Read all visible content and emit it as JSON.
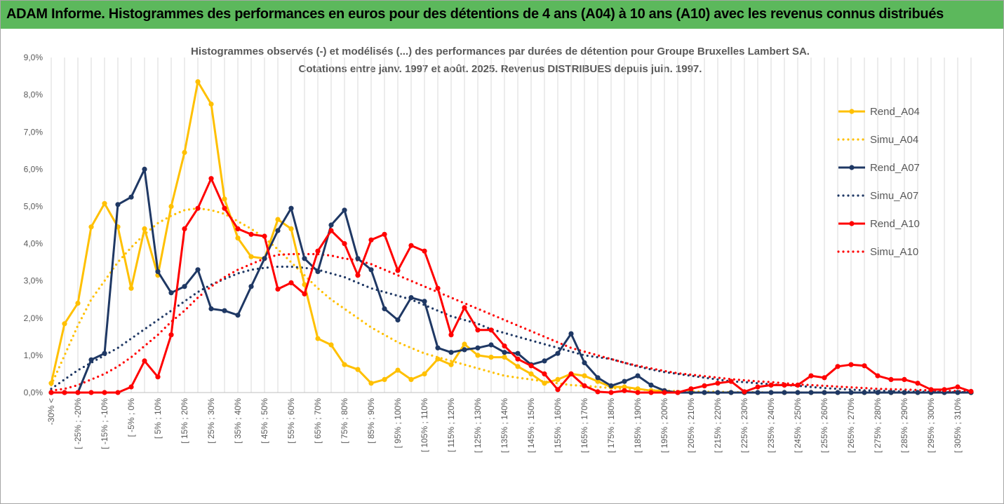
{
  "banner": {
    "title": "ADAM Informe. Histogrammes des performances en euros pour des détentions de 4 ans (A04) à 10 ans (A10) avec les revenus connus distribués"
  },
  "chart_data": {
    "type": "line",
    "title": "Histogrammes observés (-) et modélisés (...) des performances par durées de détention pour Groupe Bruxelles Lambert SA.",
    "subtitle": "Cotations entre janv. 1997 et août. 2025. Revenus DISTRIBUES depuis juin. 1997.",
    "ylim": [
      0,
      9
    ],
    "y_ticks": [
      "0,0%",
      "1,0%",
      "2,0%",
      "3,0%",
      "4,0%",
      "5,0%",
      "6,0%",
      "7,0%",
      "8,0%",
      "9,0%"
    ],
    "grid": "vertical",
    "legend": "right",
    "x_labels": [
      "-30% <",
      "[ -25% ; -20%",
      "[ -15% ; -10%",
      "[ -5% ; 0%",
      "[ 5% ; 10%",
      "[ 15% ; 20%",
      "[ 25% ; 30%",
      "[ 35% ; 40%",
      "[ 45% ; 50%",
      "[ 55% ; 60%",
      "[ 65% ; 70%",
      "[ 75% ; 80%",
      "[ 85% ; 90%",
      "[ 95% ; 100%",
      "[ 105% ; 110%",
      "[ 115% ; 120%",
      "[ 125% ; 130%",
      "[ 135% ; 140%",
      "[ 145% ; 150%",
      "[ 155% ; 160%",
      "[ 165% ; 170%",
      "[ 175% ; 180%",
      "[ 185% ; 190%",
      "[ 195% ; 200%",
      "[ 205% ; 210%",
      "[ 215% ; 220%",
      "[ 225% ; 230%",
      "[ 235% ; 240%",
      "[ 245% ; 250%",
      "[ 255% ; 260%",
      "[ 265% ; 270%",
      "[ 275% ; 280%",
      "[ 285% ; 290%",
      "[ 295% ; 300%",
      "[ 305% ; 310%"
    ],
    "n_bins": 70,
    "series": [
      {
        "name": "Rend_A04",
        "color": "#ffc000",
        "style": "solid",
        "markers": true,
        "values": [
          0.25,
          1.85,
          2.4,
          4.45,
          5.08,
          4.45,
          2.8,
          4.4,
          3.15,
          5.0,
          6.45,
          8.35,
          7.75,
          5.2,
          4.15,
          3.65,
          3.6,
          4.65,
          4.4,
          2.9,
          1.45,
          1.28,
          0.75,
          0.62,
          0.25,
          0.35,
          0.6,
          0.35,
          0.5,
          0.9,
          0.75,
          1.3,
          1.0,
          0.95,
          0.95,
          0.7,
          0.5,
          0.25,
          0.35,
          0.5,
          0.45,
          0.3,
          0.15,
          0.15,
          0.1,
          0.05,
          0.05,
          0,
          0,
          0,
          0,
          0,
          0,
          0,
          0,
          0,
          0,
          0,
          0,
          0,
          0,
          0,
          0,
          0,
          0,
          0,
          0,
          0,
          0,
          0
        ]
      },
      {
        "name": "Simu_A04",
        "color": "#ffc000",
        "style": "dotted",
        "markers": false,
        "values": [
          0.2,
          1.0,
          1.8,
          2.5,
          3.0,
          3.5,
          3.9,
          4.25,
          4.55,
          4.75,
          4.9,
          4.95,
          4.9,
          4.8,
          4.6,
          4.4,
          4.15,
          3.85,
          3.5,
          3.15,
          2.8,
          2.5,
          2.25,
          2.0,
          1.75,
          1.55,
          1.35,
          1.2,
          1.05,
          0.95,
          0.85,
          0.75,
          0.65,
          0.55,
          0.45,
          0.4,
          0.35,
          0.3,
          0.25,
          0.2,
          0.18,
          0.15,
          0.12,
          0.1,
          0.08,
          0.06,
          0.05,
          0.04,
          0.03,
          0.02,
          0.02,
          0.01,
          0.01,
          0.01,
          0,
          0,
          0,
          0,
          0,
          0,
          0,
          0,
          0,
          0,
          0,
          0,
          0,
          0,
          0,
          0
        ]
      },
      {
        "name": "Rend_A07",
        "color": "#1f3864",
        "style": "solid",
        "markers": true,
        "values": [
          0,
          0,
          0,
          0.88,
          1.05,
          5.05,
          5.25,
          6.0,
          3.25,
          2.68,
          2.85,
          3.3,
          2.25,
          2.2,
          2.08,
          2.85,
          3.6,
          4.35,
          4.95,
          3.6,
          3.25,
          4.5,
          4.9,
          3.6,
          3.3,
          2.25,
          1.95,
          2.55,
          2.45,
          1.2,
          1.08,
          1.15,
          1.2,
          1.28,
          1.08,
          1.05,
          0.75,
          0.85,
          1.05,
          1.58,
          0.8,
          0.4,
          0.18,
          0.3,
          0.45,
          0.2,
          0.05,
          0,
          0,
          0,
          0,
          0,
          0,
          0,
          0,
          0,
          0,
          0,
          0,
          0,
          0,
          0,
          0,
          0,
          0,
          0,
          0,
          0,
          0,
          0
        ]
      },
      {
        "name": "Simu_A07",
        "color": "#1f3864",
        "style": "dotted",
        "markers": false,
        "values": [
          0.1,
          0.35,
          0.6,
          0.8,
          1.0,
          1.2,
          1.45,
          1.7,
          1.95,
          2.2,
          2.45,
          2.7,
          2.9,
          3.05,
          3.2,
          3.3,
          3.35,
          3.38,
          3.38,
          3.35,
          3.3,
          3.2,
          3.1,
          2.95,
          2.8,
          2.7,
          2.6,
          2.5,
          2.35,
          2.2,
          2.05,
          1.95,
          1.85,
          1.7,
          1.6,
          1.5,
          1.4,
          1.3,
          1.2,
          1.1,
          1.0,
          0.95,
          0.9,
          0.8,
          0.7,
          0.62,
          0.55,
          0.5,
          0.45,
          0.4,
          0.35,
          0.3,
          0.28,
          0.25,
          0.22,
          0.2,
          0.18,
          0.15,
          0.12,
          0.1,
          0.08,
          0.06,
          0.05,
          0.04,
          0.03,
          0.02,
          0.02,
          0.01,
          0.01,
          0.01
        ]
      },
      {
        "name": "Rend_A10",
        "color": "#ff0000",
        "style": "solid",
        "markers": true,
        "values": [
          0,
          0,
          0,
          0,
          0,
          0,
          0.15,
          0.85,
          0.42,
          1.55,
          4.4,
          4.95,
          5.75,
          4.95,
          4.4,
          4.25,
          4.2,
          2.78,
          2.95,
          2.65,
          3.8,
          4.35,
          4.0,
          3.15,
          4.1,
          4.25,
          3.28,
          3.95,
          3.8,
          2.8,
          1.55,
          2.28,
          1.68,
          1.68,
          1.25,
          0.9,
          0.72,
          0.5,
          0.08,
          0.5,
          0.18,
          0.02,
          0,
          0.05,
          0,
          0,
          0,
          0,
          0.1,
          0.18,
          0.25,
          0.3,
          0.02,
          0.15,
          0.2,
          0.2,
          0.2,
          0.45,
          0.4,
          0.7,
          0.75,
          0.72,
          0.45,
          0.35,
          0.35,
          0.25,
          0.08,
          0.08,
          0.15,
          0.03
        ]
      },
      {
        "name": "Simu_A10",
        "color": "#ff0000",
        "style": "dotted",
        "markers": false,
        "values": [
          0.05,
          0.1,
          0.2,
          0.35,
          0.5,
          0.7,
          0.95,
          1.25,
          1.55,
          1.9,
          2.2,
          2.55,
          2.85,
          3.1,
          3.3,
          3.45,
          3.6,
          3.7,
          3.72,
          3.72,
          3.72,
          3.68,
          3.6,
          3.55,
          3.45,
          3.3,
          3.15,
          3.0,
          2.85,
          2.7,
          2.55,
          2.4,
          2.25,
          2.1,
          1.95,
          1.8,
          1.65,
          1.5,
          1.35,
          1.2,
          1.1,
          1.0,
          0.9,
          0.8,
          0.72,
          0.65,
          0.58,
          0.52,
          0.48,
          0.44,
          0.4,
          0.36,
          0.33,
          0.3,
          0.28,
          0.25,
          0.22,
          0.2,
          0.18,
          0.16,
          0.14,
          0.12,
          0.1,
          0.09,
          0.08,
          0.07,
          0.06,
          0.05,
          0.04,
          0.03
        ]
      }
    ]
  }
}
